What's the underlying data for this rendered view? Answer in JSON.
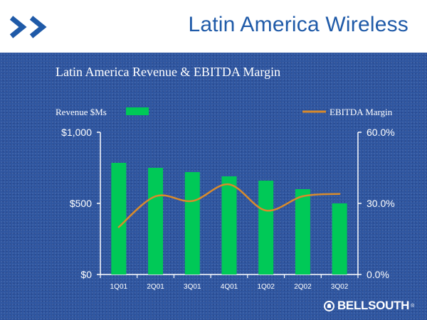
{
  "slide": {
    "title": "Latin America Wireless",
    "brand": "BELLSOUTH",
    "brand_mark": "®"
  },
  "chart_data": {
    "type": "bar",
    "title": "Latin America Revenue & EBITDA Margin",
    "categories": [
      "1Q01",
      "2Q01",
      "3Q01",
      "4Q01",
      "1Q02",
      "2Q02",
      "3Q02"
    ],
    "series": [
      {
        "name": "Revenue $Ms",
        "kind": "bar",
        "axis": "left",
        "values": [
          785,
          750,
          720,
          690,
          660,
          600,
          500
        ]
      },
      {
        "name": "EBITDA Margin",
        "kind": "line",
        "axis": "right",
        "values": [
          20,
          33,
          31,
          38,
          27,
          33,
          34
        ]
      }
    ],
    "y_left": {
      "ylim": [
        0,
        1000
      ],
      "ticks": [
        0,
        500,
        1000
      ],
      "tick_labels": [
        "$0",
        "$500",
        "$1,000"
      ]
    },
    "y_right": {
      "ylim": [
        0,
        60
      ],
      "ticks": [
        0,
        30,
        60
      ],
      "tick_labels": [
        "0.0%",
        "30.0%",
        "60.0%"
      ]
    },
    "legend_position": "top",
    "grid": false
  },
  "colors": {
    "bar": "#00c957",
    "line": "#d98b2b",
    "axis": "#ffffff",
    "title": "#1f5aa8",
    "logo": "#1f5aa8"
  }
}
